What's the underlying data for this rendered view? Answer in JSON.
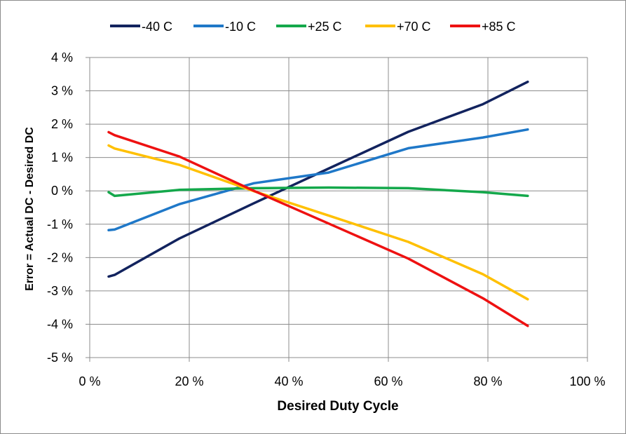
{
  "chart_data": {
    "type": "line",
    "xlabel": "Desired Duty Cycle",
    "ylabel": "Error = Actual DC - Desired DC",
    "xlim": [
      0,
      100
    ],
    "ylim": [
      -5,
      4
    ],
    "x_ticks": [
      0,
      20,
      40,
      60,
      80,
      100
    ],
    "y_ticks": [
      4,
      3,
      2,
      1,
      0,
      -1,
      -2,
      -3,
      -4,
      -5
    ],
    "x_tick_labels": [
      "0 %",
      "20 %",
      "40 %",
      "60 %",
      "80 %",
      "100 %"
    ],
    "y_tick_labels": [
      "4 %",
      "3 %",
      "2 %",
      "1 %",
      "0 %",
      "-1 %",
      "-2 %",
      "-3 %",
      "-4 %",
      "-5 %"
    ],
    "grid": true,
    "legend_position": "top",
    "series": [
      {
        "name": "-40 C",
        "color": "#12235E",
        "x": [
          3.8,
          5,
          18,
          33,
          48,
          64,
          79,
          88
        ],
        "y": [
          -2.57,
          -2.52,
          -1.43,
          -0.37,
          0.67,
          1.77,
          2.6,
          3.27
        ]
      },
      {
        "name": "-10 C",
        "color": "#1F78C8",
        "x": [
          3.8,
          5,
          18,
          33,
          48,
          64,
          79,
          88
        ],
        "y": [
          -1.18,
          -1.16,
          -0.4,
          0.23,
          0.55,
          1.28,
          1.6,
          1.84
        ]
      },
      {
        "name": "+25 C",
        "color": "#14A84B",
        "x": [
          3.8,
          5,
          18,
          33,
          48,
          64,
          79,
          88
        ],
        "y": [
          -0.04,
          -0.15,
          0.03,
          0.08,
          0.1,
          0.08,
          -0.04,
          -0.15
        ]
      },
      {
        "name": "+70 C",
        "color": "#FFC000",
        "x": [
          3.8,
          5,
          18,
          33,
          48,
          64,
          79,
          88
        ],
        "y": [
          1.36,
          1.27,
          0.78,
          -0.01,
          -0.74,
          -1.53,
          -2.5,
          -3.25
        ]
      },
      {
        "name": "+85 C",
        "color": "#EE1111",
        "x": [
          3.8,
          5,
          18,
          33,
          48,
          64,
          79,
          88
        ],
        "y": [
          1.76,
          1.67,
          1.03,
          0.0,
          -0.98,
          -2.03,
          -3.22,
          -4.05
        ]
      }
    ]
  }
}
